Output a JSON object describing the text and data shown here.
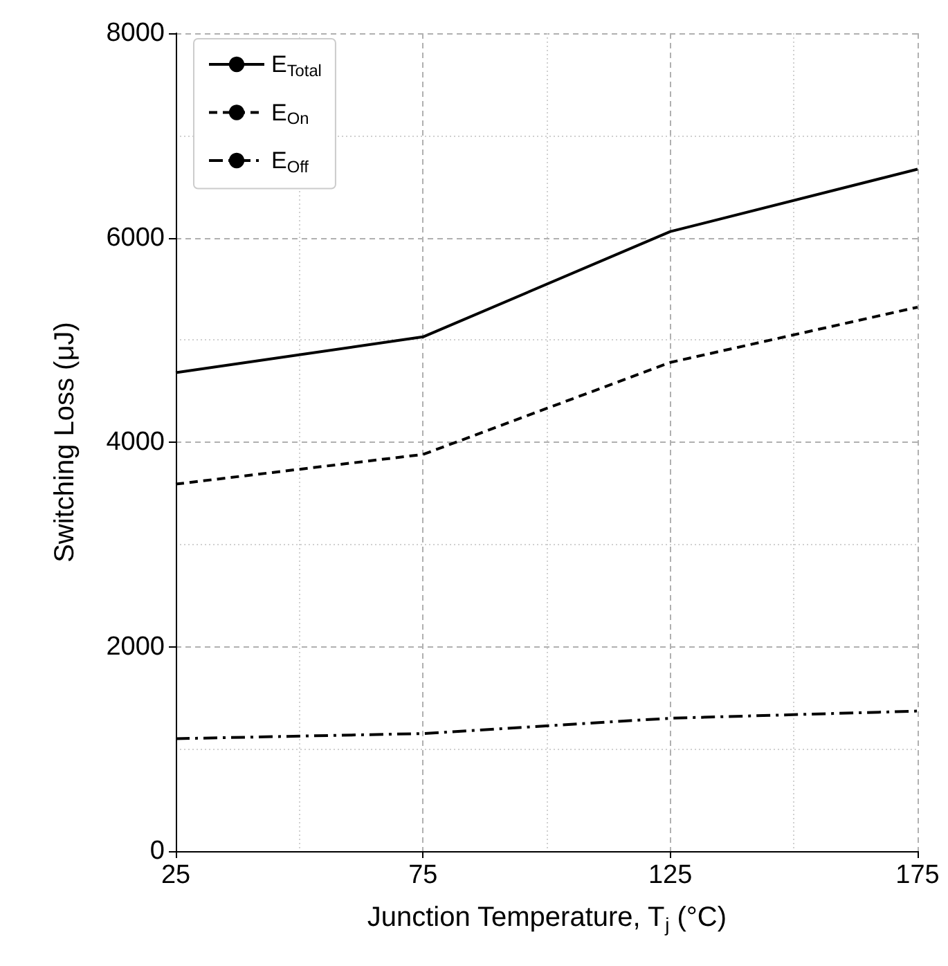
{
  "chart_data": {
    "type": "line",
    "xlabel": "Junction Temperature, T$_{j}$ (°C)",
    "ylabel": "Switching Loss (μJ)",
    "x": [
      25,
      75,
      125,
      175
    ],
    "series": [
      {
        "name": "E$_{Total}$",
        "color": "#000000",
        "line_style": "solid",
        "values": [
          4680,
          5030,
          6060,
          6670
        ]
      },
      {
        "name": "E$_{On}$",
        "color": "#000000",
        "line_style": "dashed",
        "values": [
          3590,
          3880,
          4780,
          5320
        ]
      },
      {
        "name": "E$_{Off}$",
        "color": "#000000",
        "line_style": "dashdot",
        "values": [
          1100,
          1150,
          1300,
          1370
        ]
      }
    ],
    "xlim": [
      25,
      175
    ],
    "xticks": [
      25,
      75,
      125,
      175
    ],
    "ylim": [
      0,
      8000
    ],
    "yticks": [
      0,
      2000,
      4000,
      6000,
      8000
    ],
    "grid": true,
    "legend": "top left",
    "marker": "none"
  }
}
